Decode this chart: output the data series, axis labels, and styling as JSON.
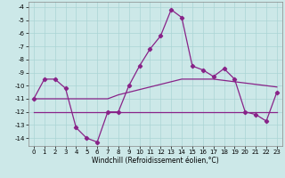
{
  "xlabel": "Windchill (Refroidissement éolien,°C)",
  "hours": [
    0,
    1,
    2,
    3,
    4,
    5,
    6,
    7,
    8,
    9,
    10,
    11,
    12,
    13,
    14,
    15,
    16,
    17,
    18,
    19,
    20,
    21,
    22,
    23
  ],
  "windchill": [
    -11.0,
    -9.5,
    -9.5,
    -10.2,
    -13.2,
    -14.0,
    -14.3,
    -12.0,
    -12.0,
    -10.0,
    -8.5,
    -7.2,
    -6.2,
    -4.2,
    -4.8,
    -8.5,
    -8.8,
    -9.3,
    -8.7,
    -9.5,
    -12.0,
    -12.2,
    -12.7,
    -10.5
  ],
  "line_flat": [
    -12.0,
    -12.0,
    -12.0,
    -12.0,
    -12.0,
    -12.0,
    -12.0,
    -12.0,
    -12.0,
    -12.0,
    -12.0,
    -12.0,
    -12.0,
    -12.0,
    -12.0,
    -12.0,
    -12.0,
    -12.0,
    -12.0,
    -12.0,
    -12.0,
    -12.0,
    -12.0,
    -12.0
  ],
  "line_trend": [
    -11.0,
    -11.0,
    -11.0,
    -11.0,
    -11.0,
    -11.0,
    -11.0,
    -11.0,
    -10.7,
    -10.5,
    -10.3,
    -10.1,
    -9.9,
    -9.7,
    -9.5,
    -9.5,
    -9.5,
    -9.5,
    -9.6,
    -9.7,
    -9.8,
    -9.9,
    -10.0,
    -10.1
  ],
  "ylim": [
    -14.6,
    -3.6
  ],
  "yticks": [
    -4,
    -5,
    -6,
    -7,
    -8,
    -9,
    -10,
    -11,
    -12,
    -13,
    -14
  ],
  "bg_color": "#cce8e8",
  "grid_color": "#aad4d4",
  "line_color": "#882288",
  "marker": "D",
  "markersize": 2.2,
  "linewidth": 0.9,
  "tick_fontsize": 5.0,
  "xlabel_fontsize": 5.5
}
